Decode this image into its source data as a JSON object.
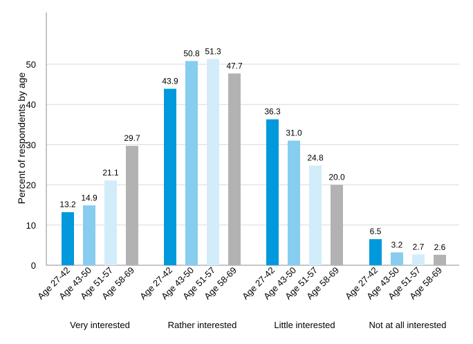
{
  "chart_data": {
    "type": "bar",
    "ylabel": "Percent of respondents by age",
    "ylim": [
      0,
      60
    ],
    "yticks": [
      0,
      10,
      20,
      30,
      40,
      50
    ],
    "grid": true,
    "categories": [
      "Very interested",
      "Rather interested",
      "Little interested",
      "Not at all interested"
    ],
    "series": [
      {
        "name": "Age 27-42",
        "color": "#0099dc",
        "values": [
          13.2,
          43.9,
          36.3,
          6.5
        ],
        "labels": [
          "13.2",
          "43.9",
          "36.3",
          "6.5"
        ]
      },
      {
        "name": "Age 43-50",
        "color": "#86cdf0",
        "values": [
          14.9,
          50.8,
          31.0,
          3.2
        ],
        "labels": [
          "14.9",
          "50.8",
          "31.0",
          "3.2"
        ]
      },
      {
        "name": "Age 51-57",
        "color": "#d2ecfa",
        "values": [
          21.1,
          51.3,
          24.8,
          2.7
        ],
        "labels": [
          "21.1",
          "51.3",
          "24.8",
          "2.7"
        ]
      },
      {
        "name": "Age 58-69",
        "color": "#b2b2b2",
        "values": [
          29.7,
          47.7,
          20.0,
          2.6
        ],
        "labels": [
          "29.7",
          "47.7",
          "20.0",
          "2.6"
        ]
      }
    ]
  }
}
